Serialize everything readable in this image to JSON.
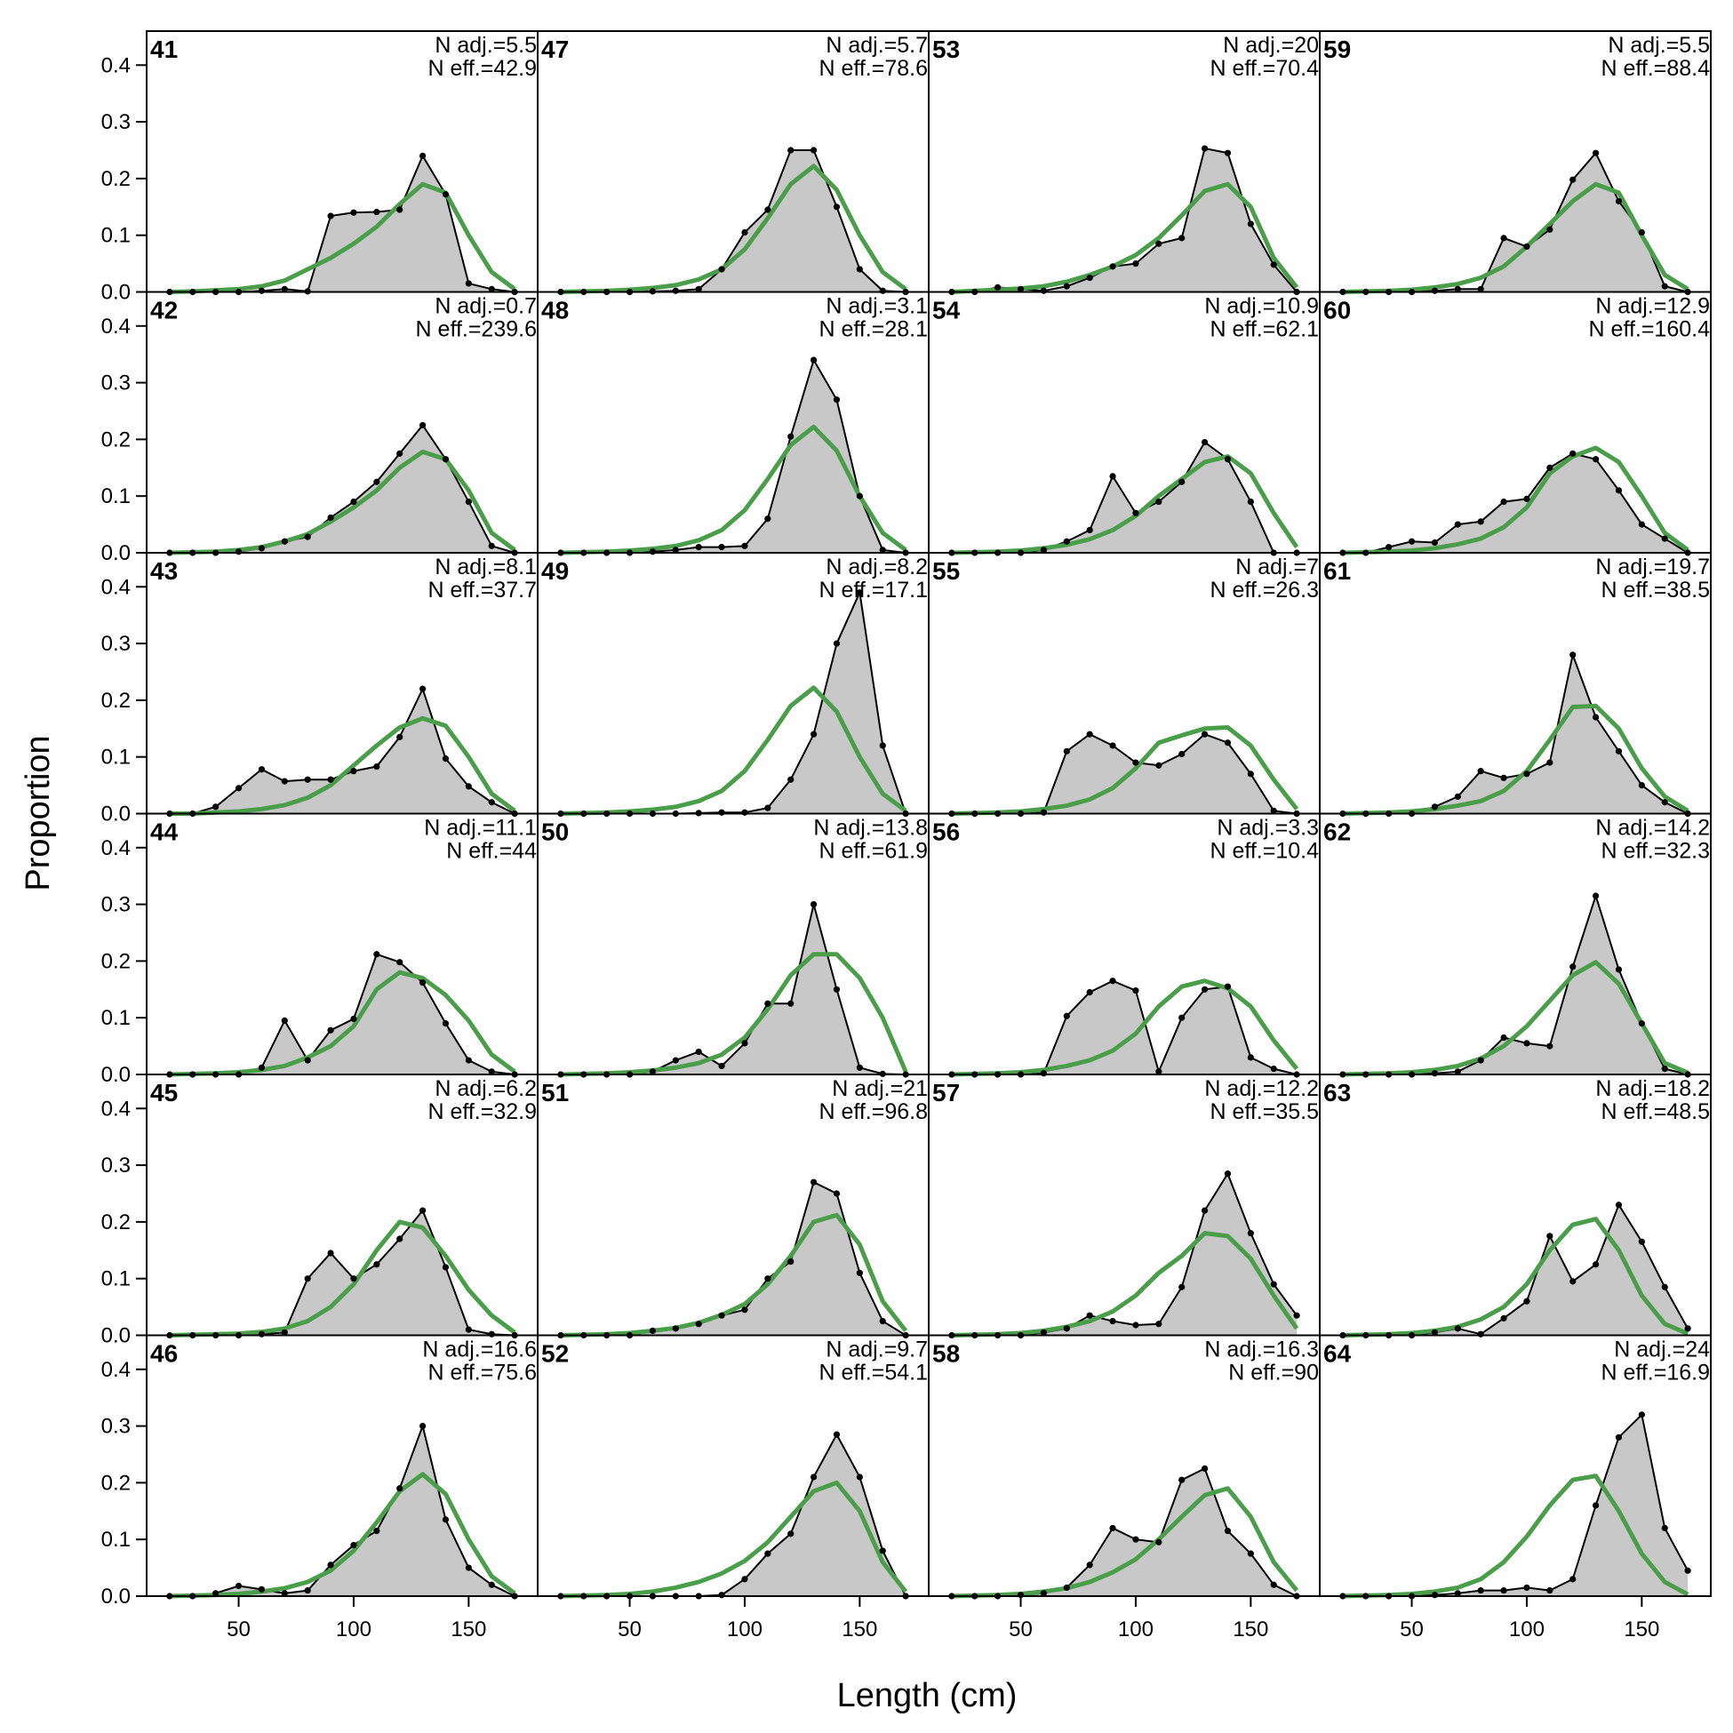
{
  "figure": {
    "xlabel": "Length (cm)",
    "ylabel": "Proportion"
  },
  "chart_data": {
    "type": "area",
    "x": [
      20,
      30,
      40,
      50,
      60,
      70,
      80,
      90,
      100,
      110,
      120,
      130,
      140,
      150,
      160,
      170
    ],
    "xlim": [
      10,
      180
    ],
    "ylim": [
      0,
      0.46
    ],
    "xticks": [
      50,
      100,
      150
    ],
    "yticks": [
      0.0,
      0.1,
      0.2,
      0.3,
      0.4
    ],
    "ytick_labels": [
      "0.0",
      "0.1",
      "0.2",
      "0.3",
      "0.4"
    ],
    "colors": {
      "observed_fill": "#c8c8c8",
      "observed_line": "#000000",
      "expected_line": "#4a9e4a",
      "baseline": "#bdbdbd"
    },
    "layout": {
      "columns": 4,
      "rows": 6,
      "order": "column-major"
    },
    "panels": [
      {
        "id": "41",
        "n_adj": "N adj.=5.5",
        "n_eff": "N eff.=42.9",
        "obs": [
          0,
          0,
          0,
          0,
          0.002,
          0.005,
          0.001,
          0.134,
          0.14,
          0.141,
          0.145,
          0.24,
          0.172,
          0.015,
          0.005,
          0
        ],
        "exp": [
          0,
          0.001,
          0.003,
          0.005,
          0.01,
          0.02,
          0.04,
          0.06,
          0.085,
          0.115,
          0.155,
          0.19,
          0.175,
          0.1,
          0.035,
          0.005
        ]
      },
      {
        "id": "42",
        "n_adj": "N adj.=0.7",
        "n_eff": "N eff.=239.6",
        "obs": [
          0,
          0,
          0,
          0.002,
          0.008,
          0.02,
          0.028,
          0.062,
          0.09,
          0.125,
          0.175,
          0.225,
          0.165,
          0.09,
          0.012,
          0
        ],
        "exp": [
          0,
          0.001,
          0.002,
          0.005,
          0.01,
          0.02,
          0.033,
          0.055,
          0.08,
          0.11,
          0.15,
          0.178,
          0.165,
          0.11,
          0.035,
          0.005
        ]
      },
      {
        "id": "43",
        "n_adj": "N adj.=8.1",
        "n_eff": "N eff.=37.7",
        "obs": [
          0,
          0,
          0.012,
          0.045,
          0.078,
          0.057,
          0.06,
          0.06,
          0.075,
          0.083,
          0.135,
          0.22,
          0.097,
          0.048,
          0.02,
          0
        ],
        "exp": [
          0,
          0,
          0.002,
          0.004,
          0.008,
          0.015,
          0.028,
          0.05,
          0.085,
          0.12,
          0.152,
          0.168,
          0.155,
          0.1,
          0.035,
          0.005
        ]
      },
      {
        "id": "44",
        "n_adj": "N adj.=11.1",
        "n_eff": "N eff.=44",
        "obs": [
          0,
          0,
          0,
          0,
          0.012,
          0.095,
          0.025,
          0.078,
          0.098,
          0.212,
          0.198,
          0.162,
          0.09,
          0.025,
          0.005,
          0
        ],
        "exp": [
          0,
          0.001,
          0.002,
          0.004,
          0.008,
          0.015,
          0.03,
          0.05,
          0.085,
          0.15,
          0.18,
          0.17,
          0.14,
          0.095,
          0.035,
          0.005
        ]
      },
      {
        "id": "45",
        "n_adj": "N adj.=6.2",
        "n_eff": "N eff.=32.9",
        "obs": [
          0,
          0,
          0,
          0,
          0.002,
          0.005,
          0.1,
          0.145,
          0.1,
          0.125,
          0.17,
          0.22,
          0.12,
          0.01,
          0.002,
          0
        ],
        "exp": [
          0,
          0.001,
          0.002,
          0.003,
          0.006,
          0.012,
          0.025,
          0.05,
          0.09,
          0.15,
          0.2,
          0.19,
          0.14,
          0.08,
          0.035,
          0.005
        ]
      },
      {
        "id": "46",
        "n_adj": "N adj.=16.6",
        "n_eff": "N eff.=75.6",
        "obs": [
          0,
          0,
          0.005,
          0.018,
          0.012,
          0.005,
          0.01,
          0.055,
          0.09,
          0.115,
          0.19,
          0.3,
          0.135,
          0.05,
          0.02,
          0
        ],
        "exp": [
          0,
          0.001,
          0.002,
          0.004,
          0.008,
          0.014,
          0.025,
          0.045,
          0.08,
          0.13,
          0.185,
          0.215,
          0.18,
          0.1,
          0.035,
          0.005
        ]
      },
      {
        "id": "47",
        "n_adj": "N adj.=5.7",
        "n_eff": "N eff.=78.6",
        "obs": [
          0,
          0,
          0,
          0,
          0.001,
          0.002,
          0.005,
          0.04,
          0.105,
          0.145,
          0.25,
          0.25,
          0.15,
          0.04,
          0.002,
          0
        ],
        "exp": [
          0,
          0.001,
          0.002,
          0.004,
          0.007,
          0.012,
          0.022,
          0.04,
          0.075,
          0.13,
          0.19,
          0.222,
          0.18,
          0.1,
          0.035,
          0.005
        ]
      },
      {
        "id": "48",
        "n_adj": "N adj.=3.1",
        "n_eff": "N eff.=28.1",
        "obs": [
          0,
          0,
          0,
          0,
          0.002,
          0.005,
          0.01,
          0.01,
          0.012,
          0.06,
          0.205,
          0.34,
          0.27,
          0.1,
          0.005,
          0
        ],
        "exp": [
          0,
          0.001,
          0.002,
          0.004,
          0.007,
          0.012,
          0.022,
          0.04,
          0.075,
          0.13,
          0.19,
          0.222,
          0.18,
          0.1,
          0.035,
          0.005
        ]
      },
      {
        "id": "49",
        "n_adj": "N adj.=8.2",
        "n_eff": "N eff.=17.1",
        "obs": [
          0,
          0,
          0,
          0,
          0,
          0,
          0.001,
          0.002,
          0.002,
          0.01,
          0.06,
          0.14,
          0.3,
          0.39,
          0.12,
          0
        ],
        "exp": [
          0,
          0.001,
          0.002,
          0.004,
          0.007,
          0.012,
          0.022,
          0.04,
          0.075,
          0.13,
          0.19,
          0.222,
          0.18,
          0.1,
          0.035,
          0.005
        ]
      },
      {
        "id": "50",
        "n_adj": "N adj.=13.8",
        "n_eff": "N eff.=61.9",
        "obs": [
          0,
          0,
          0,
          0,
          0.005,
          0.025,
          0.04,
          0.015,
          0.055,
          0.125,
          0.125,
          0.3,
          0.15,
          0.012,
          0.001,
          0
        ],
        "exp": [
          0,
          0.001,
          0.002,
          0.004,
          0.007,
          0.012,
          0.02,
          0.035,
          0.065,
          0.115,
          0.175,
          0.212,
          0.212,
          0.17,
          0.1,
          0.005
        ]
      },
      {
        "id": "51",
        "n_adj": "N adj.=21",
        "n_eff": "N eff.=96.8",
        "obs": [
          0,
          0,
          0,
          0,
          0.008,
          0.012,
          0.02,
          0.035,
          0.045,
          0.1,
          0.13,
          0.27,
          0.25,
          0.11,
          0.025,
          0
        ],
        "exp": [
          0,
          0.001,
          0.002,
          0.004,
          0.008,
          0.013,
          0.022,
          0.036,
          0.055,
          0.09,
          0.14,
          0.2,
          0.212,
          0.16,
          0.06,
          0.008
        ]
      },
      {
        "id": "52",
        "n_adj": "N adj.=9.7",
        "n_eff": "N eff.=54.1",
        "obs": [
          0,
          0,
          0,
          0,
          0,
          0,
          0,
          0.002,
          0.03,
          0.075,
          0.11,
          0.21,
          0.285,
          0.21,
          0.08,
          0
        ],
        "exp": [
          0,
          0.001,
          0.002,
          0.004,
          0.008,
          0.015,
          0.025,
          0.04,
          0.062,
          0.095,
          0.14,
          0.185,
          0.2,
          0.15,
          0.06,
          0.008
        ]
      },
      {
        "id": "53",
        "n_adj": "N adj.=20",
        "n_eff": "N eff.=70.4",
        "obs": [
          0,
          0,
          0.008,
          0.005,
          0.002,
          0.01,
          0.025,
          0.045,
          0.05,
          0.085,
          0.095,
          0.253,
          0.245,
          0.12,
          0.048,
          0
        ],
        "exp": [
          0,
          0.002,
          0.004,
          0.006,
          0.01,
          0.018,
          0.03,
          0.045,
          0.065,
          0.095,
          0.135,
          0.178,
          0.19,
          0.15,
          0.06,
          0.008
        ]
      },
      {
        "id": "54",
        "n_adj": "N adj.=10.9",
        "n_eff": "N eff.=62.1",
        "obs": [
          0,
          0,
          0,
          0,
          0.005,
          0.02,
          0.04,
          0.135,
          0.07,
          0.09,
          0.125,
          0.195,
          0.165,
          0.09,
          0,
          0
        ],
        "exp": [
          0,
          0.001,
          0.002,
          0.004,
          0.008,
          0.014,
          0.024,
          0.04,
          0.065,
          0.1,
          0.13,
          0.16,
          0.17,
          0.14,
          0.07,
          0.01
        ]
      },
      {
        "id": "55",
        "n_adj": "N adj.=7",
        "n_eff": "N eff.=26.3",
        "obs": [
          0,
          0,
          0,
          0,
          0.002,
          0.11,
          0.14,
          0.12,
          0.09,
          0.085,
          0.105,
          0.14,
          0.125,
          0.07,
          0.005,
          0
        ],
        "exp": [
          0,
          0.001,
          0.002,
          0.004,
          0.008,
          0.014,
          0.025,
          0.045,
          0.08,
          0.125,
          0.138,
          0.15,
          0.152,
          0.12,
          0.06,
          0.008
        ]
      },
      {
        "id": "56",
        "n_adj": "N adj.=3.3",
        "n_eff": "N eff.=10.4",
        "obs": [
          0,
          0,
          0,
          0,
          0.002,
          0.103,
          0.145,
          0.165,
          0.148,
          0.005,
          0.1,
          0.15,
          0.155,
          0.03,
          0.01,
          0
        ],
        "exp": [
          0,
          0.001,
          0.002,
          0.004,
          0.008,
          0.015,
          0.025,
          0.042,
          0.072,
          0.12,
          0.155,
          0.165,
          0.152,
          0.12,
          0.06,
          0.01
        ]
      },
      {
        "id": "57",
        "n_adj": "N adj.=12.2",
        "n_eff": "N eff.=35.5",
        "obs": [
          0,
          0,
          0,
          0,
          0.005,
          0.012,
          0.035,
          0.025,
          0.018,
          0.02,
          0.085,
          0.22,
          0.285,
          0.18,
          0.09,
          0.035
        ],
        "exp": [
          0,
          0.001,
          0.002,
          0.004,
          0.008,
          0.015,
          0.025,
          0.042,
          0.07,
          0.11,
          0.14,
          0.18,
          0.175,
          0.135,
          0.07,
          0.012
        ]
      },
      {
        "id": "58",
        "n_adj": "N adj.=16.3",
        "n_eff": "N eff.=90",
        "obs": [
          0,
          0,
          0,
          0.002,
          0.005,
          0.015,
          0.055,
          0.12,
          0.1,
          0.095,
          0.205,
          0.225,
          0.115,
          0.075,
          0.02,
          0
        ],
        "exp": [
          0,
          0.001,
          0.002,
          0.004,
          0.008,
          0.014,
          0.025,
          0.042,
          0.065,
          0.1,
          0.14,
          0.178,
          0.19,
          0.14,
          0.06,
          0.01
        ]
      },
      {
        "id": "59",
        "n_adj": "N adj.=5.5",
        "n_eff": "N eff.=88.4",
        "obs": [
          0,
          0,
          0,
          0,
          0.002,
          0.005,
          0.005,
          0.095,
          0.08,
          0.11,
          0.198,
          0.245,
          0.16,
          0.105,
          0.01,
          0
        ],
        "exp": [
          0,
          0.001,
          0.002,
          0.004,
          0.008,
          0.014,
          0.025,
          0.045,
          0.08,
          0.12,
          0.16,
          0.19,
          0.175,
          0.1,
          0.03,
          0.005
        ]
      },
      {
        "id": "60",
        "n_adj": "N adj.=12.9",
        "n_eff": "N eff.=160.4",
        "obs": [
          0,
          0,
          0.01,
          0.02,
          0.018,
          0.05,
          0.055,
          0.09,
          0.095,
          0.15,
          0.175,
          0.165,
          0.11,
          0.05,
          0.025,
          0
        ],
        "exp": [
          0,
          0.001,
          0.002,
          0.004,
          0.008,
          0.015,
          0.025,
          0.045,
          0.08,
          0.14,
          0.17,
          0.185,
          0.16,
          0.1,
          0.035,
          0.005
        ]
      },
      {
        "id": "61",
        "n_adj": "N adj.=19.7",
        "n_eff": "N eff.=38.5",
        "obs": [
          0,
          0,
          0,
          0,
          0.012,
          0.03,
          0.075,
          0.063,
          0.07,
          0.09,
          0.28,
          0.17,
          0.11,
          0.05,
          0.02,
          0
        ],
        "exp": [
          0,
          0.001,
          0.002,
          0.004,
          0.008,
          0.014,
          0.022,
          0.04,
          0.075,
          0.13,
          0.188,
          0.19,
          0.15,
          0.08,
          0.03,
          0.005
        ]
      },
      {
        "id": "62",
        "n_adj": "N adj.=14.2",
        "n_eff": "N eff.=32.3",
        "obs": [
          0,
          0,
          0,
          0,
          0.002,
          0.005,
          0.025,
          0.065,
          0.055,
          0.05,
          0.19,
          0.315,
          0.185,
          0.09,
          0.01,
          0
        ],
        "exp": [
          0,
          0.001,
          0.002,
          0.004,
          0.008,
          0.015,
          0.028,
          0.05,
          0.085,
          0.13,
          0.175,
          0.198,
          0.16,
          0.09,
          0.02,
          0.003
        ]
      },
      {
        "id": "63",
        "n_adj": "N adj.=18.2",
        "n_eff": "N eff.=48.5",
        "obs": [
          0,
          0,
          0,
          0,
          0.005,
          0.012,
          0.002,
          0.03,
          0.06,
          0.175,
          0.095,
          0.125,
          0.23,
          0.165,
          0.085,
          0.012
        ],
        "exp": [
          0,
          0.001,
          0.002,
          0.004,
          0.008,
          0.015,
          0.028,
          0.05,
          0.09,
          0.15,
          0.195,
          0.205,
          0.15,
          0.07,
          0.02,
          0.003
        ]
      },
      {
        "id": "64",
        "n_adj": "N adj.=24",
        "n_eff": "N eff.=16.9",
        "obs": [
          0,
          0,
          0,
          0,
          0.002,
          0.005,
          0.01,
          0.01,
          0.015,
          0.01,
          0.03,
          0.16,
          0.28,
          0.32,
          0.12,
          0.045
        ],
        "exp": [
          0,
          0.001,
          0.002,
          0.004,
          0.008,
          0.015,
          0.03,
          0.06,
          0.105,
          0.16,
          0.205,
          0.212,
          0.15,
          0.075,
          0.025,
          0.003
        ]
      }
    ]
  }
}
